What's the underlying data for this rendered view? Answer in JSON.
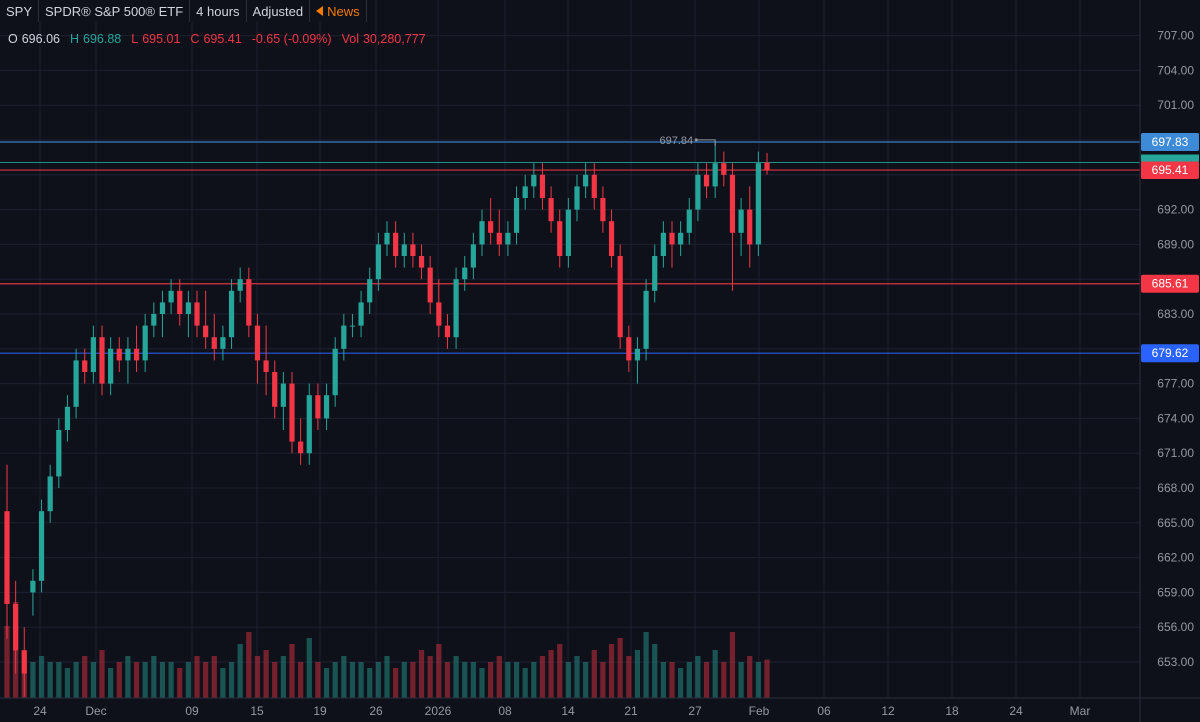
{
  "header": {
    "symbol": "SPY",
    "name": "SPDR® S&P 500® ETF",
    "interval": "4 hours",
    "adjustment": "Adjusted",
    "news_label": "News"
  },
  "ohlc": {
    "o_label": "O",
    "o_value": "696.06",
    "h_label": "H",
    "h_value": "696.88",
    "l_label": "L",
    "l_value": "695.01",
    "c_label": "C",
    "c_value": "695.41",
    "change": "-0.65 (-0.09%)",
    "vol_label": "Vol",
    "vol_value": "30,280,777"
  },
  "colors": {
    "background": "#0f111a",
    "grid": "#1c2030",
    "up": "#26a69a",
    "down": "#f23645",
    "blue_line": "#2962ff",
    "light_blue_line": "#3d8bd6",
    "price_line": "#26a69a"
  },
  "chart_data": {
    "type": "candlestick",
    "y_ticks": [
      "653.00",
      "656.00",
      "659.00",
      "662.00",
      "665.00",
      "668.00",
      "671.00",
      "674.00",
      "677.00",
      "680.00",
      "683.00",
      "686.00",
      "689.00",
      "692.00",
      "695.00",
      "698.00",
      "701.00",
      "704.00",
      "707.00"
    ],
    "y_tick_labels": [
      "653.00",
      "656.00",
      "659.00",
      "662.00",
      "665.00",
      "668.00",
      "671.00",
      "674.00",
      "677.00",
      "683.00",
      "689.00",
      "692.00",
      "701.00",
      "704.00",
      "707.00"
    ],
    "ylim": [
      650.5,
      710
    ],
    "x_labels": [
      "24",
      "Dec",
      "09",
      "15",
      "19",
      "26",
      "2026",
      "08",
      "14",
      "21",
      "27",
      "Feb",
      "06",
      "12",
      "18",
      "24",
      "Mar"
    ],
    "horizontal_lines": [
      {
        "price": 697.83,
        "label": "697.83",
        "color": "#3d8bd6"
      },
      {
        "price": 695.41,
        "label": "695.41",
        "color": "#f23645"
      },
      {
        "price": 685.61,
        "label": "685.61",
        "color": "#f23645"
      },
      {
        "price": 679.62,
        "label": "679.62",
        "color": "#2962ff"
      }
    ],
    "price_line": 696.06,
    "high_marker": {
      "price": 697.84,
      "label": "697.84"
    },
    "candles": [
      [
        666,
        670,
        655,
        658
      ],
      [
        658,
        660,
        652,
        654
      ],
      [
        654,
        656,
        650,
        652
      ],
      [
        659,
        661,
        657,
        660
      ],
      [
        660,
        667,
        659,
        666
      ],
      [
        666,
        670,
        665,
        669
      ],
      [
        669,
        674,
        668,
        673
      ],
      [
        673,
        676,
        672,
        675
      ],
      [
        675,
        680,
        674,
        679
      ],
      [
        679,
        680,
        677,
        678
      ],
      [
        678,
        682,
        677,
        681
      ],
      [
        681,
        682,
        676,
        677
      ],
      [
        677,
        681,
        676,
        680
      ],
      [
        680,
        681,
        678,
        679
      ],
      [
        679,
        681,
        677,
        680
      ],
      [
        680,
        682,
        678,
        679
      ],
      [
        679,
        683,
        678,
        682
      ],
      [
        682,
        684,
        681,
        683
      ],
      [
        683,
        685,
        681,
        684
      ],
      [
        684,
        686,
        683,
        685
      ],
      [
        685,
        686,
        682,
        683
      ],
      [
        683,
        685,
        681,
        684
      ],
      [
        684,
        685,
        681,
        682
      ],
      [
        682,
        685,
        680,
        681
      ],
      [
        681,
        683,
        679,
        680
      ],
      [
        680,
        682,
        679,
        681
      ],
      [
        681,
        686,
        680,
        685
      ],
      [
        685,
        687,
        684,
        686
      ],
      [
        686,
        687,
        681,
        682
      ],
      [
        682,
        683,
        677,
        679
      ],
      [
        679,
        682,
        676,
        678
      ],
      [
        678,
        679,
        674,
        675
      ],
      [
        675,
        678,
        673,
        677
      ],
      [
        677,
        678,
        671,
        672
      ],
      [
        672,
        674,
        670,
        671
      ],
      [
        671,
        677,
        670,
        676
      ],
      [
        676,
        677,
        673,
        674
      ],
      [
        674,
        677,
        673,
        676
      ],
      [
        676,
        681,
        675,
        680
      ],
      [
        680,
        683,
        679,
        682
      ],
      [
        682,
        683,
        681,
        682
      ],
      [
        682,
        685,
        681,
        684
      ],
      [
        684,
        687,
        683,
        686
      ],
      [
        686,
        690,
        685,
        689
      ],
      [
        689,
        691,
        688,
        690
      ],
      [
        690,
        691,
        687,
        688
      ],
      [
        688,
        690,
        687,
        689
      ],
      [
        689,
        690,
        687,
        688
      ],
      [
        688,
        689,
        686,
        687
      ],
      [
        687,
        688,
        683,
        684
      ],
      [
        684,
        686,
        681,
        682
      ],
      [
        682,
        683,
        680,
        681
      ],
      [
        681,
        687,
        680,
        686
      ],
      [
        686,
        688,
        685,
        687
      ],
      [
        687,
        690,
        686,
        689
      ],
      [
        689,
        692,
        688,
        691
      ],
      [
        691,
        693,
        689,
        690
      ],
      [
        690,
        692,
        688,
        689
      ],
      [
        689,
        691,
        688,
        690
      ],
      [
        690,
        694,
        689,
        693
      ],
      [
        693,
        695,
        692,
        694
      ],
      [
        694,
        696,
        693,
        695
      ],
      [
        695,
        696,
        692,
        693
      ],
      [
        693,
        694,
        690,
        691
      ],
      [
        691,
        692,
        687,
        688
      ],
      [
        688,
        693,
        687,
        692
      ],
      [
        692,
        695,
        691,
        694
      ],
      [
        694,
        696,
        693,
        695
      ],
      [
        695,
        696,
        692,
        693
      ],
      [
        693,
        694,
        690,
        691
      ],
      [
        691,
        692,
        687,
        688
      ],
      [
        688,
        689,
        680,
        681
      ],
      [
        681,
        682,
        678,
        679
      ],
      [
        679,
        681,
        677,
        680
      ],
      [
        680,
        686,
        679,
        685
      ],
      [
        685,
        689,
        684,
        688
      ],
      [
        688,
        691,
        687,
        690
      ],
      [
        690,
        691,
        687,
        689
      ],
      [
        689,
        691,
        688,
        690
      ],
      [
        690,
        693,
        689,
        692
      ],
      [
        692,
        696,
        691,
        695
      ],
      [
        695,
        696,
        693,
        694
      ],
      [
        694,
        697.84,
        693,
        696
      ],
      [
        696,
        697,
        694,
        695
      ],
      [
        695,
        696,
        685,
        690
      ],
      [
        690,
        693,
        688,
        692
      ],
      [
        692,
        694,
        687,
        689
      ],
      [
        689,
        697,
        688,
        696
      ],
      [
        696.06,
        696.88,
        695.01,
        695.41
      ]
    ],
    "volumes": [
      0.6,
      0.8,
      0.4,
      0.3,
      0.35,
      0.3,
      0.3,
      0.25,
      0.3,
      0.35,
      0.3,
      0.4,
      0.25,
      0.3,
      0.35,
      0.3,
      0.3,
      0.35,
      0.3,
      0.3,
      0.25,
      0.3,
      0.35,
      0.3,
      0.35,
      0.25,
      0.3,
      0.45,
      0.55,
      0.35,
      0.4,
      0.3,
      0.35,
      0.45,
      0.3,
      0.5,
      0.3,
      0.25,
      0.3,
      0.35,
      0.3,
      0.3,
      0.25,
      0.3,
      0.35,
      0.25,
      0.3,
      0.3,
      0.4,
      0.35,
      0.45,
      0.3,
      0.35,
      0.3,
      0.3,
      0.25,
      0.3,
      0.35,
      0.3,
      0.3,
      0.25,
      0.3,
      0.35,
      0.4,
      0.45,
      0.3,
      0.35,
      0.3,
      0.4,
      0.3,
      0.45,
      0.5,
      0.35,
      0.4,
      0.55,
      0.45,
      0.3,
      0.3,
      0.25,
      0.3,
      0.35,
      0.3,
      0.4,
      0.3,
      0.55,
      0.3,
      0.35,
      0.3,
      0.32
    ]
  }
}
